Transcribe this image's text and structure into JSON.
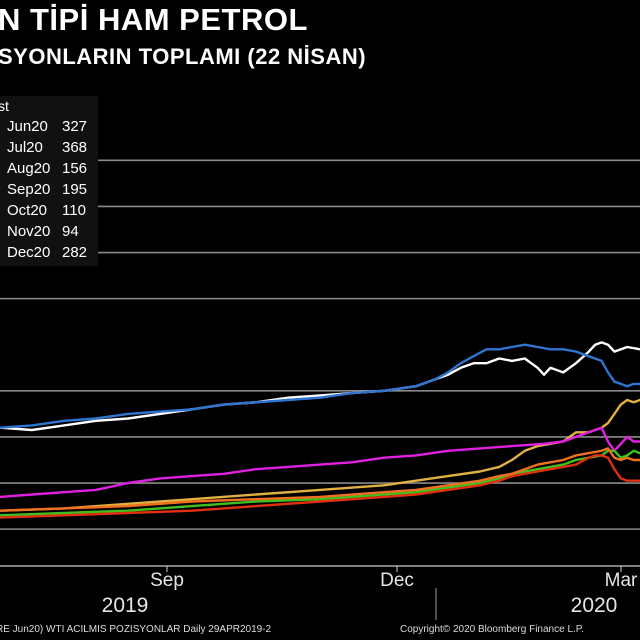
{
  "header": {
    "title": "N TİPİ HAM PETROL",
    "subtitle": "SYONLARIN TOPLAMI (22 NİSAN)"
  },
  "legend": {
    "header": "st",
    "items": [
      {
        "label": "Jun20",
        "value": "327",
        "color": "#ffffff"
      },
      {
        "label": "Jul20",
        "value": "368",
        "color": "#2f74d0"
      },
      {
        "label": "Aug20",
        "value": "156",
        "color": "#e0b040"
      },
      {
        "label": "Sep20",
        "value": "195",
        "color": "#e020e0"
      },
      {
        "label": "Oct20",
        "value": "110",
        "color": "#40c020"
      },
      {
        "label": "Nov20",
        "value": "94",
        "color": "#e03010"
      },
      {
        "label": "Dec20",
        "value": "282",
        "color": "#f07020"
      }
    ]
  },
  "footer": {
    "left": "RE Jun20) WTI ACILMIS POZISYONLAR  Daily 29APR2019-2",
    "right": "Copyright© 2020 Bloomberg Finance L.P."
  },
  "chart_data": {
    "type": "line",
    "title": "N TİPİ HAM PETROL",
    "subtitle": "SYONLARIN TOPLAMI (22 NİSAN)",
    "x_tick_labels": [
      "Sep",
      "Dec",
      "Mar"
    ],
    "year_labels": [
      "2019",
      "2020"
    ],
    "x_range": [
      0,
      100
    ],
    "y_range": [
      0,
      100
    ],
    "y_gridlines": [
      8,
      18,
      28,
      38,
      58,
      68,
      78,
      88
    ],
    "series": [
      {
        "name": "Jun20",
        "color": "#ffffff",
        "x": [
          0,
          5,
          10,
          15,
          20,
          25,
          30,
          35,
          40,
          45,
          50,
          55,
          60,
          65,
          68,
          70,
          72,
          74,
          76,
          78,
          80,
          82,
          84,
          85,
          86,
          88,
          90,
          92,
          93,
          94,
          95,
          96,
          98,
          100
        ],
        "y": [
          30,
          29.5,
          30.5,
          31.5,
          32,
          33,
          34,
          35,
          35.5,
          36.5,
          37,
          37.5,
          38,
          39,
          40.5,
          41.5,
          43,
          44,
          44,
          45,
          44.5,
          45,
          43,
          41.5,
          43,
          42,
          44,
          46.5,
          48,
          48.5,
          48,
          46.5,
          47.5,
          47
        ]
      },
      {
        "name": "Jul20",
        "color": "#2f74d0",
        "x": [
          0,
          5,
          10,
          15,
          20,
          25,
          30,
          35,
          40,
          45,
          50,
          55,
          60,
          65,
          68,
          70,
          72,
          74,
          76,
          78,
          80,
          82,
          84,
          86,
          88,
          90,
          92,
          94,
          95,
          96,
          97,
          98,
          99,
          100
        ],
        "y": [
          30,
          30.5,
          31.5,
          32,
          33,
          33.5,
          34,
          35,
          35.5,
          36,
          36.5,
          37.5,
          38,
          39,
          40.5,
          42,
          44,
          45.5,
          47,
          47,
          47.5,
          48,
          47.5,
          47,
          47,
          46.5,
          45.5,
          44.5,
          42,
          40,
          39.5,
          39,
          39.5,
          39.5
        ]
      },
      {
        "name": "Aug20",
        "color": "#e0b040",
        "x": [
          0,
          10,
          20,
          30,
          40,
          50,
          60,
          65,
          70,
          75,
          78,
          80,
          82,
          84,
          86,
          88,
          90,
          92,
          94,
          95,
          96,
          97,
          98,
          99,
          100
        ],
        "y": [
          12,
          12.5,
          13.5,
          14.5,
          15.5,
          16.5,
          17.5,
          18.5,
          19.5,
          20.5,
          21.5,
          23,
          25,
          26,
          26.5,
          27,
          29,
          29,
          30,
          31,
          33,
          35,
          36,
          35.5,
          36
        ]
      },
      {
        "name": "Sep20",
        "color": "#e020e0",
        "x": [
          0,
          5,
          10,
          15,
          20,
          25,
          30,
          35,
          40,
          45,
          50,
          55,
          60,
          65,
          70,
          75,
          80,
          85,
          88,
          90,
          92,
          94,
          95,
          96,
          97,
          98,
          99,
          100
        ],
        "y": [
          15,
          15.5,
          16,
          16.5,
          18,
          19,
          19.5,
          20,
          21,
          21.5,
          22,
          22.5,
          23.5,
          24,
          25,
          25.5,
          26,
          26.5,
          27,
          28,
          29,
          30,
          27,
          25,
          26.5,
          28,
          27,
          27
        ]
      },
      {
        "name": "Oct20",
        "color": "#40c020",
        "x": [
          0,
          10,
          20,
          30,
          40,
          50,
          60,
          65,
          70,
          75,
          78,
          80,
          82,
          84,
          86,
          88,
          90,
          92,
          94,
          95,
          96,
          97,
          98,
          99,
          100
        ],
        "y": [
          11,
          11.5,
          12,
          13,
          14,
          14.5,
          15.5,
          16,
          17,
          18,
          19,
          20,
          20.5,
          21,
          21.5,
          22,
          23,
          23.5,
          24,
          25,
          25,
          23.5,
          24,
          25,
          24.5
        ]
      },
      {
        "name": "Nov20",
        "color": "#e03010",
        "x": [
          0,
          10,
          20,
          30,
          40,
          50,
          60,
          65,
          70,
          75,
          78,
          80,
          82,
          84,
          86,
          88,
          90,
          92,
          93,
          94,
          95,
          96,
          97,
          98,
          100
        ],
        "y": [
          10.5,
          11,
          11.5,
          12,
          13,
          14,
          15,
          15.5,
          16.5,
          17.5,
          18.5,
          19.5,
          20,
          20.5,
          21,
          21.5,
          22,
          23.5,
          24,
          24,
          23.5,
          21,
          19,
          18.5,
          18.5
        ]
      },
      {
        "name": "Dec20",
        "color": "#f07020",
        "x": [
          0,
          10,
          20,
          30,
          40,
          50,
          60,
          65,
          70,
          75,
          78,
          80,
          82,
          84,
          86,
          88,
          90,
          92,
          94,
          95,
          96,
          97,
          98,
          99,
          100
        ],
        "y": [
          12,
          12.5,
          13,
          14,
          14.5,
          15,
          16,
          16.5,
          17.5,
          18.5,
          19.5,
          20,
          21,
          22,
          22.5,
          23,
          24,
          24.5,
          25,
          25.5,
          23.5,
          23,
          23.5,
          23,
          23
        ]
      }
    ]
  }
}
